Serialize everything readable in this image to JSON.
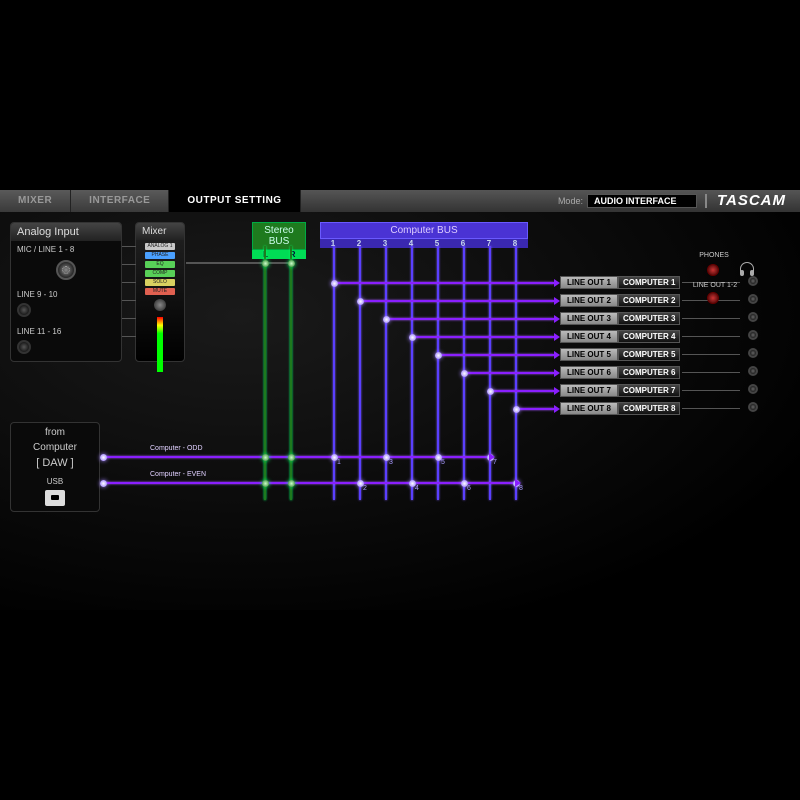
{
  "tabs": {
    "mixer": "MIXER",
    "interface": "INTERFACE",
    "output": "OUTPUT SETTING"
  },
  "mode": {
    "label": "Mode:",
    "value": "AUDIO INTERFACE"
  },
  "brand": "TASCAM",
  "analog": {
    "title": "Analog Input",
    "r1": "MIC / LINE 1 - 8",
    "r2": "LINE 9 - 10",
    "r3": "LINE 11 - 16"
  },
  "mixer": {
    "title": "Mixer",
    "btns": [
      "ANALOG 1",
      "PHASE",
      "EQ",
      "COMP",
      "SOLO",
      "MUTE"
    ],
    "btn_colors": [
      "#c8c8c8",
      "#4aa0ff",
      "#58d058",
      "#58d058",
      "#d8d060",
      "#e06050"
    ]
  },
  "stereo_bus": {
    "title": "Stereo BUS",
    "ch": [
      "L",
      "R"
    ]
  },
  "comp_bus": {
    "title": "Computer BUS",
    "ch": [
      "1",
      "2",
      "3",
      "4",
      "5",
      "6",
      "7",
      "8"
    ]
  },
  "from_computer": {
    "l1": "from",
    "l2": "Computer",
    "l3": "[ DAW ]",
    "usb": "USB"
  },
  "odd_lbl": "Computer - ODD",
  "even_lbl": "Computer - EVEN",
  "lineouts": [
    {
      "out": "LINE OUT 1",
      "src": "COMPUTER 1"
    },
    {
      "out": "LINE OUT 2",
      "src": "COMPUTER 2"
    },
    {
      "out": "LINE OUT 3",
      "src": "COMPUTER 3"
    },
    {
      "out": "LINE OUT 4",
      "src": "COMPUTER 4"
    },
    {
      "out": "LINE OUT 5",
      "src": "COMPUTER 5"
    },
    {
      "out": "LINE OUT 6",
      "src": "COMPUTER 6"
    },
    {
      "out": "LINE OUT 7",
      "src": "COMPUTER 7"
    },
    {
      "out": "LINE OUT 8",
      "src": "COMPUTER 8"
    }
  ],
  "phones_lbl": "PHONES",
  "lineout_lbl": "LINE OUT 1-2",
  "colors": {
    "purple": "#8a1fff",
    "busPurple": "#5a3fff",
    "green": "#1e7a1e"
  },
  "layout": {
    "stereoX": [
      264,
      290
    ],
    "compX": [
      333,
      359,
      385,
      411,
      437,
      463,
      489,
      515
    ],
    "busTop": 56,
    "outY0": 92,
    "outDy": 18,
    "outPanelX": 560,
    "oddY": 266,
    "evenY": 292,
    "oddNums": [
      "1",
      "3",
      "5",
      "7"
    ],
    "evenNums": [
      "2",
      "4",
      "6",
      "8"
    ]
  }
}
